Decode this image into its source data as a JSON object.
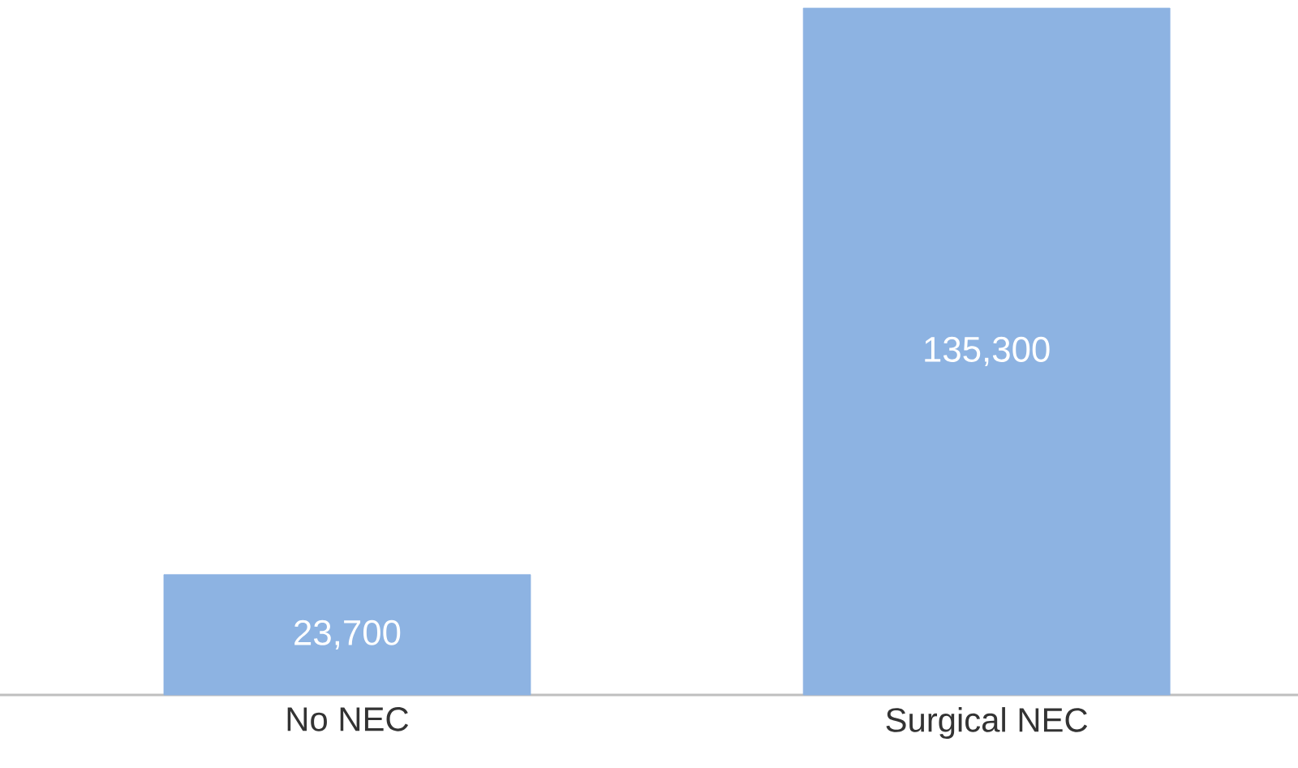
{
  "chart_data": {
    "type": "bar",
    "categories": [
      "No NEC",
      "Surgical NEC"
    ],
    "values": [
      23700,
      135300
    ],
    "value_labels": [
      "23,700",
      "135,300"
    ],
    "color": "#8db3e2"
  }
}
